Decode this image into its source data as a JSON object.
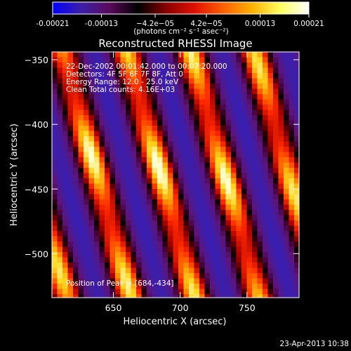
{
  "colorbar": {
    "tick_labels": [
      "-0.00021",
      "-0.00013",
      "−4.2e−05",
      "4.2e−05",
      "0.00013",
      "0.00021"
    ],
    "tick_values": [
      -0.00021,
      -0.00013,
      -4.2e-05,
      4.2e-05,
      0.00013,
      0.00021
    ],
    "range": [
      -0.00021,
      0.00021
    ],
    "unit_label": "(photons cm⁻² s⁻¹ asec⁻²)",
    "colors": [
      "#0000ff",
      "#3d1ea8",
      "#5a0a5a",
      "#000000",
      "#8a0000",
      "#e01000",
      "#ff6000",
      "#ffb000",
      "#ffff60",
      "#ffffff"
    ]
  },
  "chart_data": {
    "type": "heatmap",
    "title": "Reconstructed RHESSI Image",
    "xlabel": "Heliocentric X (arcsec)",
    "ylabel": "Heliocentric Y (arcsec)",
    "xlim": [
      604,
      789
    ],
    "ylim": [
      -534,
      -344
    ],
    "xticks": [
      650,
      700,
      750
    ],
    "xtick_labels": [
      "650",
      "700",
      "750"
    ],
    "yticks": [
      -350,
      -400,
      -450,
      -500
    ],
    "ytick_labels": [
      "−350",
      "−400",
      "−450",
      "−500"
    ],
    "annotations": [
      "22-Dec-2002 00:01:42.000 to 00:07:20.000",
      "Detectors: 4F 5F 6F 7F 8F, Att 0",
      "Energy Range: 12.0 - 25.0 keV",
      "Clean     Total counts: 4.16E+03"
    ],
    "peak_label": "Position of Peak = [684,-434]",
    "peak": [
      684,
      -434
    ]
  },
  "footer": {
    "timestamp": "23-Apr-2013 10:38"
  }
}
